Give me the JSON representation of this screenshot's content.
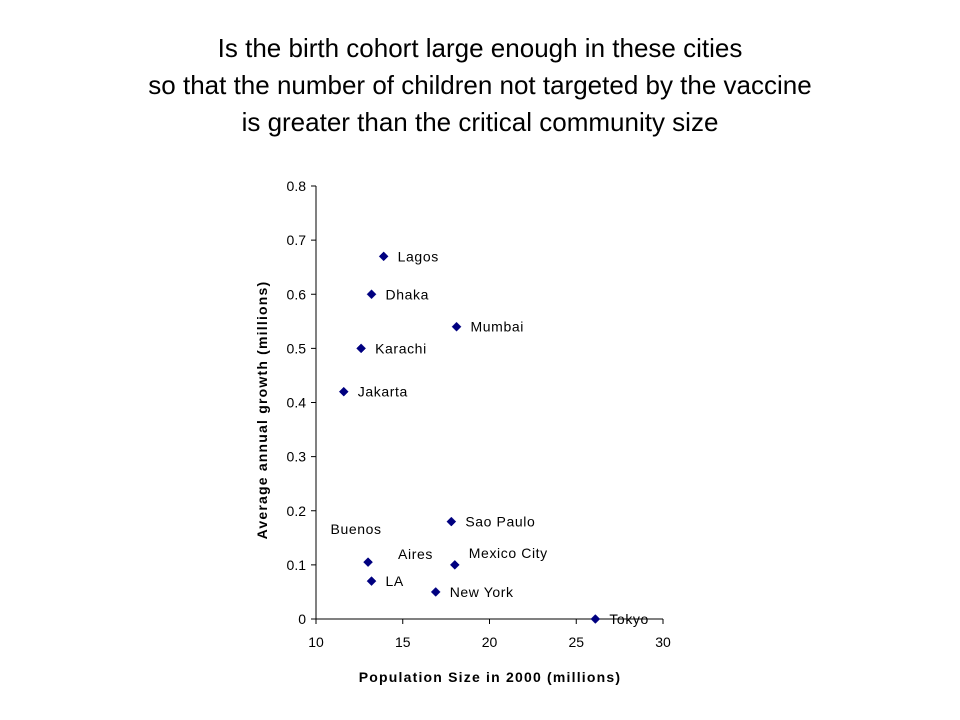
{
  "title_lines": [
    "Is the birth cohort large enough in these cities",
    "so that the number of children not targeted by the vaccine",
    "is greater than the critical community size"
  ],
  "colors": {
    "marker": "#000080",
    "axis": "#000000"
  },
  "chart_data": {
    "type": "scatter",
    "xlabel": "Population Size in 2000 (millions)",
    "ylabel": "Average annual growth (millions)",
    "xlim": [
      10,
      30
    ],
    "ylim": [
      0,
      0.8
    ],
    "xticks": [
      10,
      15,
      20,
      25,
      30
    ],
    "yticks": [
      0,
      0.1,
      0.2,
      0.3,
      0.4,
      0.5,
      0.6,
      0.7,
      0.8
    ],
    "grid": false,
    "legend": "none",
    "points": [
      {
        "label": "Lagos",
        "x": 13.9,
        "y": 0.67
      },
      {
        "label": "Dhaka",
        "x": 13.2,
        "y": 0.6
      },
      {
        "label": "Mumbai",
        "x": 18.1,
        "y": 0.54
      },
      {
        "label": "Karachi",
        "x": 12.6,
        "y": 0.5
      },
      {
        "label": "Jakarta",
        "x": 11.6,
        "y": 0.42
      },
      {
        "label": "Sao Paulo",
        "x": 17.8,
        "y": 0.18
      },
      {
        "label": "Buenos Aires",
        "x": 13.0,
        "y": 0.105
      },
      {
        "label": "Mexico City",
        "x": 18.0,
        "y": 0.1
      },
      {
        "label": "LA",
        "x": 13.2,
        "y": 0.07
      },
      {
        "label": "New York",
        "x": 16.9,
        "y": 0.05
      },
      {
        "label": "Tokyo",
        "x": 26.1,
        "y": 0.0
      }
    ]
  }
}
